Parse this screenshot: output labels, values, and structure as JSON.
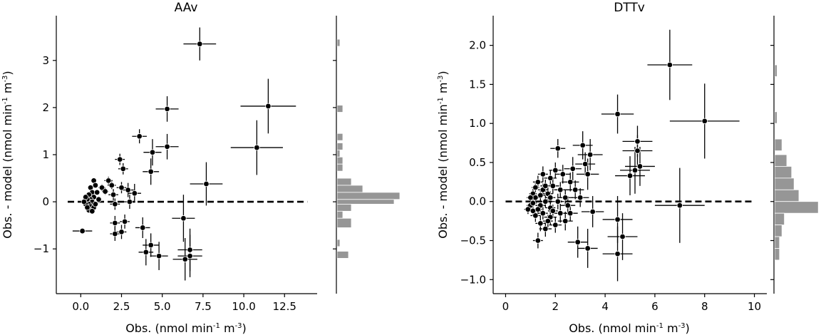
{
  "chart_data": [
    {
      "type": "scatter",
      "title": "AAv",
      "xlabel": {
        "pre": "Obs. (nmol min",
        "sup1": "-1",
        "mid": " m",
        "sup2": "-3",
        "post": ")"
      },
      "ylabel": {
        "pre": "Obs. - model (nmol min",
        "sup1": "-1",
        "mid": " m",
        "sup2": "-3",
        "post": ")"
      },
      "xlim": [
        -1.5,
        14.5
      ],
      "ylim": [
        -1.95,
        3.95
      ],
      "xticks": [
        0,
        2.5,
        5,
        7.5,
        10,
        12.5
      ],
      "xtick_labels": [
        "0.0",
        "2.5",
        "5.0",
        "7.5",
        "10.0",
        "12.5"
      ],
      "yticks": [
        -1,
        0,
        1,
        2,
        3
      ],
      "ytick_labels": [
        "−1",
        "0",
        "1",
        "2",
        "3"
      ],
      "reference_line": {
        "y": 0,
        "x_range": [
          -0.8,
          13.9
        ],
        "style": "dashed"
      },
      "points": [
        {
          "x": 7.3,
          "y": 3.35,
          "xerr": 1.0,
          "yerr": 0.35
        },
        {
          "x": 11.5,
          "y": 2.03,
          "xerr": 1.7,
          "yerr": 0.58
        },
        {
          "x": 10.8,
          "y": 1.15,
          "xerr": 1.6,
          "yerr": 0.58
        },
        {
          "x": 5.3,
          "y": 1.97,
          "xerr": 0.7,
          "yerr": 0.27
        },
        {
          "x": 5.3,
          "y": 1.17,
          "xerr": 0.7,
          "yerr": 0.27
        },
        {
          "x": 3.6,
          "y": 1.39,
          "xerr": 0.45,
          "yerr": 0.15
        },
        {
          "x": 4.4,
          "y": 1.05,
          "xerr": 0.55,
          "yerr": 0.28
        },
        {
          "x": 4.3,
          "y": 0.64,
          "xerr": 0.5,
          "yerr": 0.28
        },
        {
          "x": 7.7,
          "y": 0.38,
          "xerr": 1.0,
          "yerr": 0.46
        },
        {
          "x": 2.4,
          "y": 0.9,
          "xerr": 0.3,
          "yerr": 0.12
        },
        {
          "x": 2.6,
          "y": 0.7,
          "xerr": 0.3,
          "yerr": 0.12
        },
        {
          "x": 2.5,
          "y": 0.3,
          "xerr": 0.3,
          "yerr": 0.12
        },
        {
          "x": 2.9,
          "y": 0.25,
          "xerr": 0.35,
          "yerr": 0.15
        },
        {
          "x": 3.3,
          "y": 0.18,
          "xerr": 0.4,
          "yerr": 0.2
        },
        {
          "x": 2.1,
          "y": -0.05,
          "xerr": 0.3,
          "yerr": 0.12
        },
        {
          "x": 2.0,
          "y": 0.15,
          "xerr": 0.3,
          "yerr": 0.12
        },
        {
          "x": 3.0,
          "y": 0.0,
          "xerr": 0.35,
          "yerr": 0.15
        },
        {
          "x": 2.1,
          "y": -0.45,
          "xerr": 0.3,
          "yerr": 0.15
        },
        {
          "x": 2.1,
          "y": -0.68,
          "xerr": 0.3,
          "yerr": 0.15
        },
        {
          "x": 2.5,
          "y": -0.64,
          "xerr": 0.3,
          "yerr": 0.15
        },
        {
          "x": 2.7,
          "y": -0.42,
          "xerr": 0.3,
          "yerr": 0.15
        },
        {
          "x": 3.8,
          "y": -0.55,
          "xerr": 0.45,
          "yerr": 0.22
        },
        {
          "x": 4.0,
          "y": -1.07,
          "xerr": 0.45,
          "yerr": 0.28
        },
        {
          "x": 4.3,
          "y": -0.92,
          "xerr": 0.5,
          "yerr": 0.25
        },
        {
          "x": 4.8,
          "y": -1.15,
          "xerr": 0.55,
          "yerr": 0.3
        },
        {
          "x": 6.3,
          "y": -0.35,
          "xerr": 0.7,
          "yerr": 0.5
        },
        {
          "x": 6.4,
          "y": -1.22,
          "xerr": 0.75,
          "yerr": 0.45
        },
        {
          "x": 6.7,
          "y": -1.15,
          "xerr": 0.75,
          "yerr": 0.45
        },
        {
          "x": 6.7,
          "y": -1.02,
          "xerr": 0.75,
          "yerr": 0.45
        },
        {
          "x": 0.1,
          "y": -0.62,
          "xerr": 0.6,
          "yerr": 0.06
        },
        {
          "x": 1.7,
          "y": 0.45,
          "xerr": 0.25,
          "yerr": 0.08
        },
        {
          "x": 1.9,
          "y": 0.35,
          "xerr": 0.25,
          "yerr": 0.08
        },
        {
          "x": 1.3,
          "y": 0.3,
          "xerr": 0.2,
          "yerr": 0.07
        },
        {
          "x": 1.5,
          "y": 0.22,
          "xerr": 0.2,
          "yerr": 0.07
        },
        {
          "x": 0.8,
          "y": 0.45,
          "xerr": 0.15,
          "yerr": 0.06
        },
        {
          "x": 0.9,
          "y": 0.35,
          "xerr": 0.15,
          "yerr": 0.06
        },
        {
          "x": 0.6,
          "y": 0.3,
          "xerr": 0.15,
          "yerr": 0.06
        },
        {
          "x": 0.7,
          "y": 0.2,
          "xerr": 0.15,
          "yerr": 0.06
        },
        {
          "x": 0.5,
          "y": 0.15,
          "xerr": 0.15,
          "yerr": 0.06
        },
        {
          "x": 0.8,
          "y": 0.1,
          "xerr": 0.15,
          "yerr": 0.06
        },
        {
          "x": 0.6,
          "y": 0.05,
          "xerr": 0.15,
          "yerr": 0.06
        },
        {
          "x": 0.4,
          "y": 0.05,
          "xerr": 0.15,
          "yerr": 0.06
        },
        {
          "x": 0.7,
          "y": 0.0,
          "xerr": 0.15,
          "yerr": 0.06
        },
        {
          "x": 0.5,
          "y": -0.05,
          "xerr": 0.15,
          "yerr": 0.06
        },
        {
          "x": 0.3,
          "y": -0.05,
          "xerr": 0.15,
          "yerr": 0.06
        },
        {
          "x": 0.6,
          "y": -0.1,
          "xerr": 0.15,
          "yerr": 0.06
        },
        {
          "x": 0.8,
          "y": -0.12,
          "xerr": 0.15,
          "yerr": 0.06
        },
        {
          "x": 0.5,
          "y": -0.18,
          "xerr": 0.15,
          "yerr": 0.06
        },
        {
          "x": 0.7,
          "y": -0.2,
          "xerr": 0.15,
          "yerr": 0.06
        },
        {
          "x": 0.3,
          "y": 0.1,
          "xerr": 0.15,
          "yerr": 0.06
        },
        {
          "x": 1.0,
          "y": 0.2,
          "xerr": 0.15,
          "yerr": 0.06
        },
        {
          "x": 1.1,
          "y": 0.05,
          "xerr": 0.15,
          "yerr": 0.06
        },
        {
          "x": 0.9,
          "y": -0.05,
          "xerr": 0.15,
          "yerr": 0.06
        },
        {
          "x": 0.4,
          "y": -0.12,
          "xerr": 0.15,
          "yerr": 0.06
        },
        {
          "x": 0.2,
          "y": 0.0,
          "xerr": 0.15,
          "yerr": 0.06
        }
      ],
      "histogram": {
        "bins": [
          [
            3.3,
            3.45
          ],
          [
            1.9,
            2.05
          ],
          [
            1.3,
            1.45
          ],
          [
            1.1,
            1.25
          ],
          [
            0.95,
            1.1
          ],
          [
            0.8,
            0.95
          ],
          [
            0.65,
            0.8
          ],
          [
            0.35,
            0.5
          ],
          [
            0.2,
            0.35
          ],
          [
            0.05,
            0.2
          ],
          [
            -0.05,
            0.05
          ],
          [
            -0.2,
            -0.05
          ],
          [
            -0.35,
            -0.2
          ],
          [
            -0.55,
            -0.35
          ],
          [
            -0.95,
            -0.8
          ],
          [
            -1.2,
            -1.05
          ]
        ],
        "counts": [
          1,
          2,
          2,
          2,
          1,
          2,
          2,
          5,
          9,
          22,
          20,
          5,
          2,
          5,
          1,
          4
        ]
      }
    },
    {
      "type": "scatter",
      "title": "DTTv",
      "xlabel": {
        "pre": "Obs. (nmol min",
        "sup1": "-1",
        "mid": " m",
        "sup2": "-3",
        "post": ")"
      },
      "ylabel": {
        "pre": "Obs. - model (nmol min",
        "sup1": "-1",
        "mid": " m",
        "sup2": "-3",
        "post": ")"
      },
      "xlim": [
        -0.5,
        10.5
      ],
      "ylim": [
        -1.18,
        2.38
      ],
      "xticks": [
        0,
        2,
        4,
        6,
        8,
        10
      ],
      "xtick_labels": [
        "0",
        "2",
        "4",
        "6",
        "8",
        "10"
      ],
      "yticks": [
        -1.0,
        -0.5,
        0.0,
        0.5,
        1.0,
        1.5,
        2.0
      ],
      "ytick_labels": [
        "−1.0",
        "−0.5",
        "0.0",
        "0.5",
        "1.0",
        "1.5",
        "2.0"
      ],
      "reference_line": {
        "y": 0,
        "x_range": [
          0,
          10
        ],
        "style": "dashed"
      },
      "points": [
        {
          "x": 6.6,
          "y": 1.75,
          "xerr": 0.9,
          "yerr": 0.45
        },
        {
          "x": 8.0,
          "y": 1.03,
          "xerr": 1.4,
          "yerr": 0.48
        },
        {
          "x": 4.5,
          "y": 1.12,
          "xerr": 0.65,
          "yerr": 0.25
        },
        {
          "x": 7.0,
          "y": -0.05,
          "xerr": 1.0,
          "yerr": 0.48
        },
        {
          "x": 5.3,
          "y": 0.77,
          "xerr": 0.6,
          "yerr": 0.2
        },
        {
          "x": 5.3,
          "y": 0.65,
          "xerr": 0.6,
          "yerr": 0.2
        },
        {
          "x": 5.4,
          "y": 0.45,
          "xerr": 0.6,
          "yerr": 0.25
        },
        {
          "x": 5.2,
          "y": 0.4,
          "xerr": 0.6,
          "yerr": 0.3
        },
        {
          "x": 5.0,
          "y": 0.33,
          "xerr": 0.6,
          "yerr": 0.25
        },
        {
          "x": 4.5,
          "y": -0.23,
          "xerr": 0.6,
          "yerr": 0.3
        },
        {
          "x": 4.7,
          "y": -0.45,
          "xerr": 0.6,
          "yerr": 0.3
        },
        {
          "x": 4.5,
          "y": -0.67,
          "xerr": 0.6,
          "yerr": 0.35
        },
        {
          "x": 3.3,
          "y": -0.6,
          "xerr": 0.4,
          "yerr": 0.25
        },
        {
          "x": 2.9,
          "y": -0.52,
          "xerr": 0.4,
          "yerr": 0.2
        },
        {
          "x": 3.5,
          "y": -0.13,
          "xerr": 0.45,
          "yerr": 0.2
        },
        {
          "x": 3.3,
          "y": 0.35,
          "xerr": 0.45,
          "yerr": 0.2
        },
        {
          "x": 3.4,
          "y": 0.6,
          "xerr": 0.5,
          "yerr": 0.2
        },
        {
          "x": 3.1,
          "y": 0.72,
          "xerr": 0.4,
          "yerr": 0.18
        },
        {
          "x": 2.1,
          "y": 0.68,
          "xerr": 0.3,
          "yerr": 0.12
        },
        {
          "x": 3.2,
          "y": 0.48,
          "xerr": 0.4,
          "yerr": 0.15
        },
        {
          "x": 2.7,
          "y": 0.42,
          "xerr": 0.35,
          "yerr": 0.15
        },
        {
          "x": 2.3,
          "y": 0.35,
          "xerr": 0.3,
          "yerr": 0.12
        },
        {
          "x": 2.6,
          "y": 0.25,
          "xerr": 0.35,
          "yerr": 0.12
        },
        {
          "x": 2.8,
          "y": 0.15,
          "xerr": 0.35,
          "yerr": 0.12
        },
        {
          "x": 3.0,
          "y": 0.05,
          "xerr": 0.35,
          "yerr": 0.12
        },
        {
          "x": 2.5,
          "y": -0.05,
          "xerr": 0.3,
          "yerr": 0.12
        },
        {
          "x": 2.2,
          "y": -0.15,
          "xerr": 0.3,
          "yerr": 0.12
        },
        {
          "x": 2.4,
          "y": -0.25,
          "xerr": 0.3,
          "yerr": 0.12
        },
        {
          "x": 2.0,
          "y": -0.3,
          "xerr": 0.25,
          "yerr": 0.1
        },
        {
          "x": 1.8,
          "y": -0.2,
          "xerr": 0.25,
          "yerr": 0.1
        },
        {
          "x": 1.6,
          "y": -0.35,
          "xerr": 0.25,
          "yerr": 0.1
        },
        {
          "x": 1.4,
          "y": -0.28,
          "xerr": 0.2,
          "yerr": 0.1
        },
        {
          "x": 1.3,
          "y": -0.5,
          "xerr": 0.2,
          "yerr": 0.1
        },
        {
          "x": 1.2,
          "y": -0.18,
          "xerr": 0.2,
          "yerr": 0.08
        },
        {
          "x": 1.5,
          "y": 0.35,
          "xerr": 0.2,
          "yerr": 0.1
        },
        {
          "x": 1.8,
          "y": 0.3,
          "xerr": 0.25,
          "yerr": 0.1
        },
        {
          "x": 2.0,
          "y": 0.4,
          "xerr": 0.25,
          "yerr": 0.1
        },
        {
          "x": 1.9,
          "y": 0.2,
          "xerr": 0.25,
          "yerr": 0.1
        },
        {
          "x": 1.7,
          "y": 0.1,
          "xerr": 0.2,
          "yerr": 0.08
        },
        {
          "x": 1.5,
          "y": 0.15,
          "xerr": 0.2,
          "yerr": 0.08
        },
        {
          "x": 1.3,
          "y": 0.25,
          "xerr": 0.2,
          "yerr": 0.08
        },
        {
          "x": 1.1,
          "y": 0.1,
          "xerr": 0.15,
          "yerr": 0.06
        },
        {
          "x": 1.2,
          "y": 0.05,
          "xerr": 0.15,
          "yerr": 0.06
        },
        {
          "x": 1.0,
          "y": -0.05,
          "xerr": 0.15,
          "yerr": 0.06
        },
        {
          "x": 0.9,
          "y": -0.1,
          "xerr": 0.15,
          "yerr": 0.06
        },
        {
          "x": 1.1,
          "y": -0.12,
          "xerr": 0.15,
          "yerr": 0.06
        },
        {
          "x": 1.4,
          "y": -0.05,
          "xerr": 0.2,
          "yerr": 0.08
        },
        {
          "x": 1.6,
          "y": 0.0,
          "xerr": 0.2,
          "yerr": 0.08
        },
        {
          "x": 1.8,
          "y": -0.08,
          "xerr": 0.2,
          "yerr": 0.08
        },
        {
          "x": 2.1,
          "y": 0.0,
          "xerr": 0.25,
          "yerr": 0.1
        },
        {
          "x": 2.2,
          "y": 0.15,
          "xerr": 0.25,
          "yerr": 0.1
        },
        {
          "x": 1.0,
          "y": 0.05,
          "xerr": 0.15,
          "yerr": 0.06
        },
        {
          "x": 1.3,
          "y": -0.1,
          "xerr": 0.15,
          "yerr": 0.06
        },
        {
          "x": 1.5,
          "y": -0.15,
          "xerr": 0.2,
          "yerr": 0.08
        },
        {
          "x": 1.7,
          "y": -0.25,
          "xerr": 0.2,
          "yerr": 0.08
        },
        {
          "x": 1.9,
          "y": -0.12,
          "xerr": 0.2,
          "yerr": 0.08
        },
        {
          "x": 2.4,
          "y": 0.05,
          "xerr": 0.3,
          "yerr": 0.1
        },
        {
          "x": 2.6,
          "y": -0.15,
          "xerr": 0.3,
          "yerr": 0.1
        },
        {
          "x": 1.2,
          "y": 0.18,
          "xerr": 0.15,
          "yerr": 0.06
        },
        {
          "x": 1.4,
          "y": 0.08,
          "xerr": 0.2,
          "yerr": 0.06
        },
        {
          "x": 1.6,
          "y": 0.2,
          "xerr": 0.2,
          "yerr": 0.08
        },
        {
          "x": 1.1,
          "y": -0.02,
          "xerr": 0.15,
          "yerr": 0.06
        },
        {
          "x": 1.8,
          "y": 0.05,
          "xerr": 0.2,
          "yerr": 0.08
        }
      ],
      "histogram": {
        "bins": [
          [
            1.6,
            1.75
          ],
          [
            1.0,
            1.15
          ],
          [
            0.65,
            0.8
          ],
          [
            0.45,
            0.6
          ],
          [
            0.3,
            0.45
          ],
          [
            0.15,
            0.3
          ],
          [
            0.0,
            0.15
          ],
          [
            -0.15,
            0.0
          ],
          [
            -0.3,
            -0.15
          ],
          [
            -0.45,
            -0.3
          ],
          [
            -0.6,
            -0.45
          ],
          [
            -0.75,
            -0.6
          ]
        ],
        "counts": [
          1,
          1,
          3,
          5,
          7,
          8,
          10,
          18,
          4,
          3,
          2,
          2
        ]
      }
    }
  ]
}
